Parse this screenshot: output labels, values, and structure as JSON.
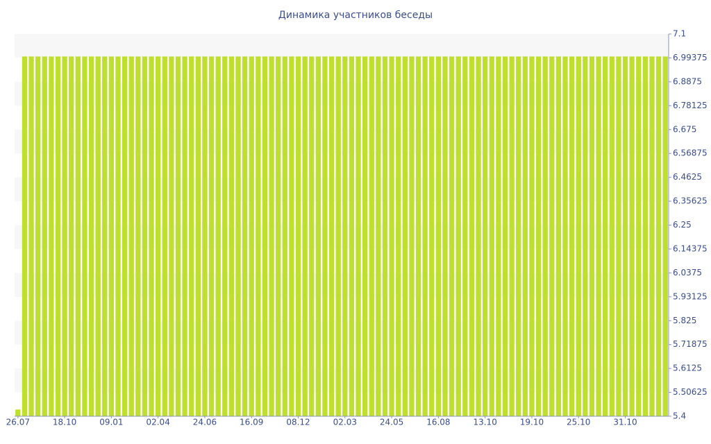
{
  "chart_data": {
    "type": "bar",
    "title": "Динамика участников беседы",
    "categories": [
      "26.07",
      null,
      null,
      null,
      null,
      null,
      null,
      "18.10",
      null,
      null,
      null,
      null,
      null,
      null,
      "09.01",
      null,
      null,
      null,
      null,
      null,
      null,
      "02.04",
      null,
      null,
      null,
      null,
      null,
      null,
      "24.06",
      null,
      null,
      null,
      null,
      null,
      null,
      "16.09",
      null,
      null,
      null,
      null,
      null,
      null,
      "08.12",
      null,
      null,
      null,
      null,
      null,
      null,
      "02.03",
      null,
      null,
      null,
      null,
      null,
      null,
      "24.05",
      null,
      null,
      null,
      null,
      null,
      null,
      "16.08",
      null,
      null,
      null,
      null,
      null,
      null,
      "13.10",
      null,
      null,
      null,
      null,
      null,
      null,
      "19.10",
      null,
      null,
      null,
      null,
      null,
      null,
      "25.10",
      null,
      null,
      null,
      null,
      null,
      null,
      "31.10",
      null,
      null,
      null,
      null,
      null,
      null
    ],
    "values": [
      5.43,
      7,
      7,
      7,
      7,
      7,
      7,
      7,
      7,
      7,
      7,
      7,
      7,
      7,
      7,
      7,
      7,
      7,
      7,
      7,
      7,
      7,
      7,
      7,
      7,
      7,
      7,
      7,
      7,
      7,
      7,
      7,
      7,
      7,
      7,
      7,
      7,
      7,
      7,
      7,
      7,
      7,
      7,
      7,
      7,
      7,
      7,
      7,
      7,
      7,
      7,
      7,
      7,
      7,
      7,
      7,
      7,
      7,
      7,
      7,
      7,
      7,
      7,
      7,
      7,
      7,
      7,
      7,
      7,
      7,
      7,
      7,
      7,
      7,
      7,
      7,
      7,
      7,
      7,
      7,
      7,
      7,
      7,
      7,
      7,
      7,
      7,
      7,
      7,
      7,
      7,
      7,
      7,
      7,
      7,
      7,
      7,
      7
    ],
    "color": "#bfdf2f",
    "ylim": [
      5.4,
      7.1
    ],
    "yticks": [
      5.4,
      5.50625,
      5.6125,
      5.71875,
      5.825,
      5.93125,
      6.0375,
      6.14375,
      6.25,
      6.35625,
      6.4625,
      6.56875,
      6.675,
      6.78125,
      6.8875,
      6.99375,
      7.1
    ],
    "grid": true
  }
}
